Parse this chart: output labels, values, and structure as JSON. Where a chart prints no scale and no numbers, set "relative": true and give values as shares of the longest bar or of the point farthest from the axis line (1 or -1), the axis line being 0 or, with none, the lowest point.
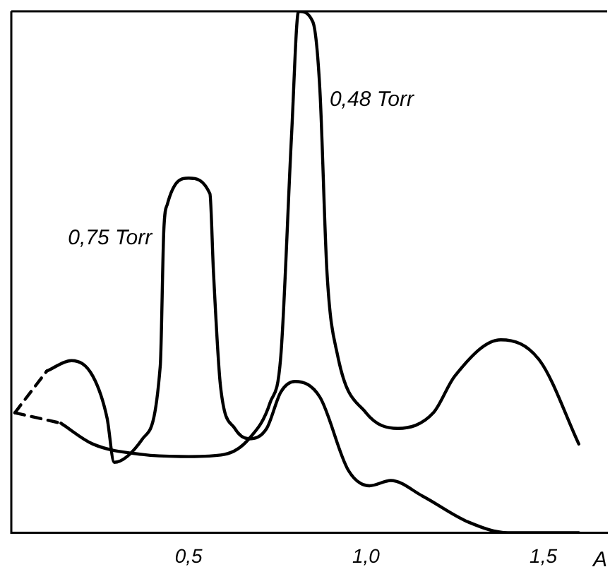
{
  "chart_data": {
    "type": "line",
    "relative": true,
    "xlabel": "A",
    "xlim": [
      0,
      1.68
    ],
    "xticks": [
      {
        "value": 0.5,
        "label": "0,5"
      },
      {
        "value": 1.0,
        "label": "1,0"
      },
      {
        "value": 1.5,
        "label": "1,5"
      }
    ],
    "grid": false,
    "legend": false,
    "marker": "none",
    "series": [
      {
        "name": "0,48 Torr",
        "color": "#000000",
        "line_style": "solid",
        "x": [
          0.14,
          0.23,
          0.37,
          0.5,
          0.6,
          0.67,
          0.73,
          0.76,
          0.79,
          0.81,
          0.85,
          0.87,
          0.89,
          0.92,
          1.0,
          1.09,
          1.19,
          1.25,
          1.38,
          1.49,
          1.6
        ],
        "values": [
          0.21,
          0.17,
          0.15,
          0.146,
          0.15,
          0.18,
          0.25,
          0.34,
          0.76,
          1.0,
          0.98,
          0.85,
          0.5,
          0.34,
          0.23,
          0.2,
          0.23,
          0.3,
          0.37,
          0.33,
          0.17
        ]
      },
      {
        "name": "0,75 Torr",
        "color": "#000000",
        "line_style": "solid",
        "x": [
          0.1,
          0.17,
          0.23,
          0.27,
          0.29,
          0.37,
          0.42,
          0.43,
          0.44,
          0.5,
          0.56,
          0.57,
          0.59,
          0.63,
          0.67,
          0.72,
          0.76,
          0.8,
          0.87,
          0.95,
          1.01,
          1.07,
          1.16,
          1.29,
          1.4,
          1.6
        ],
        "values": [
          0.31,
          0.33,
          0.3,
          0.22,
          0.135,
          0.18,
          0.32,
          0.58,
          0.63,
          0.68,
          0.65,
          0.5,
          0.28,
          0.2,
          0.18,
          0.2,
          0.27,
          0.29,
          0.26,
          0.12,
          0.09,
          0.1,
          0.07,
          0.02,
          0,
          0
        ]
      },
      {
        "color": "#000000",
        "line_style": "dashed",
        "x": [
          0.01,
          0.14
        ],
        "values": [
          0.23,
          0.21
        ]
      },
      {
        "color": "#000000",
        "line_style": "dashed",
        "x": [
          0.01,
          0.1
        ],
        "values": [
          0.23,
          0.31
        ]
      }
    ]
  }
}
